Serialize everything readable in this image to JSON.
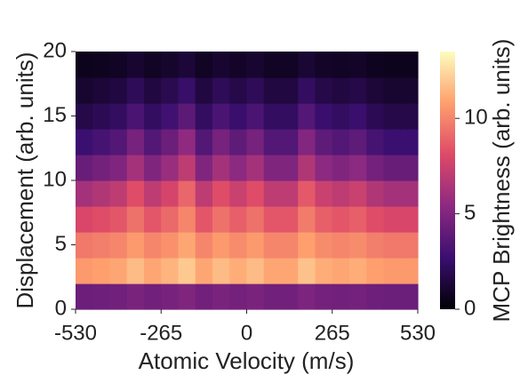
{
  "chart_data": {
    "type": "heatmap",
    "x_label": "Atomic Velocity (m/s)",
    "y_label": "Displacement (arb. units)",
    "xlim": [
      -530,
      530
    ],
    "xticks": [
      -530,
      -265,
      0,
      265,
      530
    ],
    "ylim": [
      0,
      20
    ],
    "yticks": [
      0,
      5,
      10,
      15,
      20
    ],
    "x": [
      -503.5,
      -450.5,
      -397.5,
      -344.5,
      -291.5,
      -238.5,
      -185.5,
      -132.5,
      -79.5,
      -26.5,
      26.5,
      79.5,
      132.5,
      185.5,
      238.5,
      291.5,
      344.5,
      397.5,
      450.5,
      503.5
    ],
    "y": [
      1,
      3,
      5,
      7,
      9,
      11,
      13,
      15,
      17,
      19
    ],
    "z": [
      [
        4.3,
        4.4,
        4.5,
        4.8,
        4.5,
        4.7,
        5,
        4.5,
        4.8,
        4.6,
        4.8,
        4.5,
        4.5,
        4.9,
        4.6,
        4.5,
        4.6,
        4.4,
        4.3,
        4.3
      ],
      [
        10.6,
        10.8,
        11,
        11.6,
        11,
        11.4,
        12,
        11,
        11.6,
        11.2,
        11.6,
        11,
        11,
        11.8,
        11.2,
        11,
        11.2,
        10.8,
        10.6,
        10.6
      ],
      [
        9.6,
        9.8,
        10,
        10.6,
        10,
        10.4,
        11,
        10,
        10.6,
        10.2,
        10.6,
        10,
        10,
        10.8,
        10.2,
        10,
        10.2,
        9.8,
        9.6,
        9.6
      ],
      [
        7.9,
        8.2,
        8.5,
        9.4,
        8.5,
        9.1,
        10,
        8.5,
        9.4,
        8.8,
        9.4,
        8.5,
        8.5,
        9.7,
        8.8,
        8.5,
        8.8,
        8.2,
        7.9,
        7.9
      ],
      [
        6.2,
        6.6,
        7,
        8.2,
        7,
        7.8,
        9,
        7,
        8.2,
        7.4,
        8.2,
        7,
        7,
        8.6,
        7.4,
        7,
        7.4,
        6.6,
        6.2,
        6.2
      ],
      [
        4.2,
        4.6,
        5,
        6.2,
        5,
        5.8,
        7,
        5,
        6.2,
        5.4,
        6.2,
        5,
        5,
        6.6,
        5.4,
        5,
        5.4,
        4.6,
        4.2,
        4.2
      ],
      [
        2.7,
        3.1,
        3.5,
        4.7,
        3.5,
        4.3,
        5.5,
        3.5,
        4.7,
        3.9,
        4.7,
        3.5,
        3.5,
        5.1,
        3.9,
        3.5,
        3.9,
        3.1,
        2.7,
        2.7
      ],
      [
        1.7,
        2,
        2.3,
        3.2,
        2.3,
        2.9,
        3.8,
        2.3,
        3.2,
        2.6,
        3.2,
        2.3,
        2.3,
        3.5,
        2.6,
        2.3,
        2.6,
        2,
        1.7,
        1.7
      ],
      [
        1.1,
        1.3,
        1.5,
        2.1,
        1.5,
        1.9,
        2.5,
        1.5,
        2.1,
        1.7,
        2.1,
        1.5,
        1.5,
        2.3,
        1.7,
        1.5,
        1.7,
        1.3,
        1.1,
        1.1
      ],
      [
        0.6,
        0.7,
        0.8,
        1.1,
        0.8,
        1,
        1.3,
        0.8,
        1.1,
        0.9,
        1.1,
        0.8,
        0.8,
        1.2,
        0.9,
        0.8,
        0.9,
        0.7,
        0.6,
        0.6
      ]
    ],
    "colormap": [
      "#000004",
      "#3b0f70",
      "#8c2981",
      "#de4968",
      "#fe9f6d",
      "#fcfdbf"
    ],
    "colorbar": {
      "label": "MCP Brightness (arb. units)",
      "lim": [
        0,
        13.5
      ],
      "ticks": [
        0,
        5,
        10
      ]
    }
  }
}
